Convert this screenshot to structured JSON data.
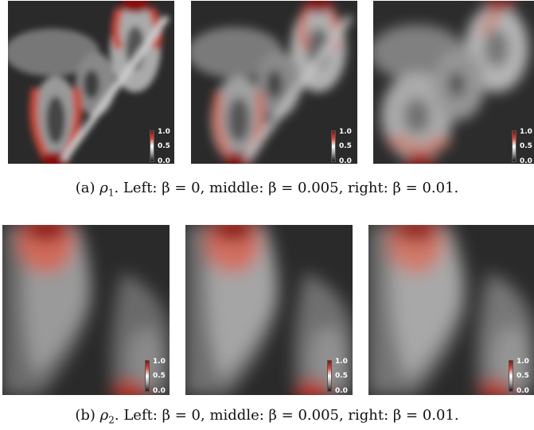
{
  "figure": {
    "row_a": {
      "caption_label": "(a)",
      "caption_var": "ρ",
      "caption_sub": "1",
      "caption_rest": ". Left: β = 0, middle: β = 0.005, right: β = 0.01.",
      "panels": [
        {
          "beta": "0",
          "colorbar": {
            "max": "1.0",
            "mid": "0.5",
            "min": "0.0"
          }
        },
        {
          "beta": "0.005",
          "colorbar": {
            "max": "1.0",
            "mid": "0.5",
            "min": "0.0"
          }
        },
        {
          "beta": "0.01",
          "colorbar": {
            "max": "1.0",
            "mid": "0.5",
            "min": "0.0"
          }
        }
      ]
    },
    "row_b": {
      "caption_label": "(b)",
      "caption_var": "ρ",
      "caption_sub": "2",
      "caption_rest": ". Left: β = 0, middle: β = 0.005, right: β = 0.01.",
      "panels": [
        {
          "beta": "0",
          "colorbar": {
            "max": "1.0",
            "mid": "0.5",
            "min": "0.0"
          }
        },
        {
          "beta": "0.005",
          "colorbar": {
            "max": "1.0",
            "mid": "0.5",
            "min": "0.0"
          }
        },
        {
          "beta": "0.01",
          "colorbar": {
            "max": "1.0",
            "mid": "0.5",
            "min": "0.0"
          }
        }
      ]
    },
    "colormap": {
      "high": "#8a1010",
      "mid": "#ffffff",
      "low": "#1a1a1a"
    }
  }
}
